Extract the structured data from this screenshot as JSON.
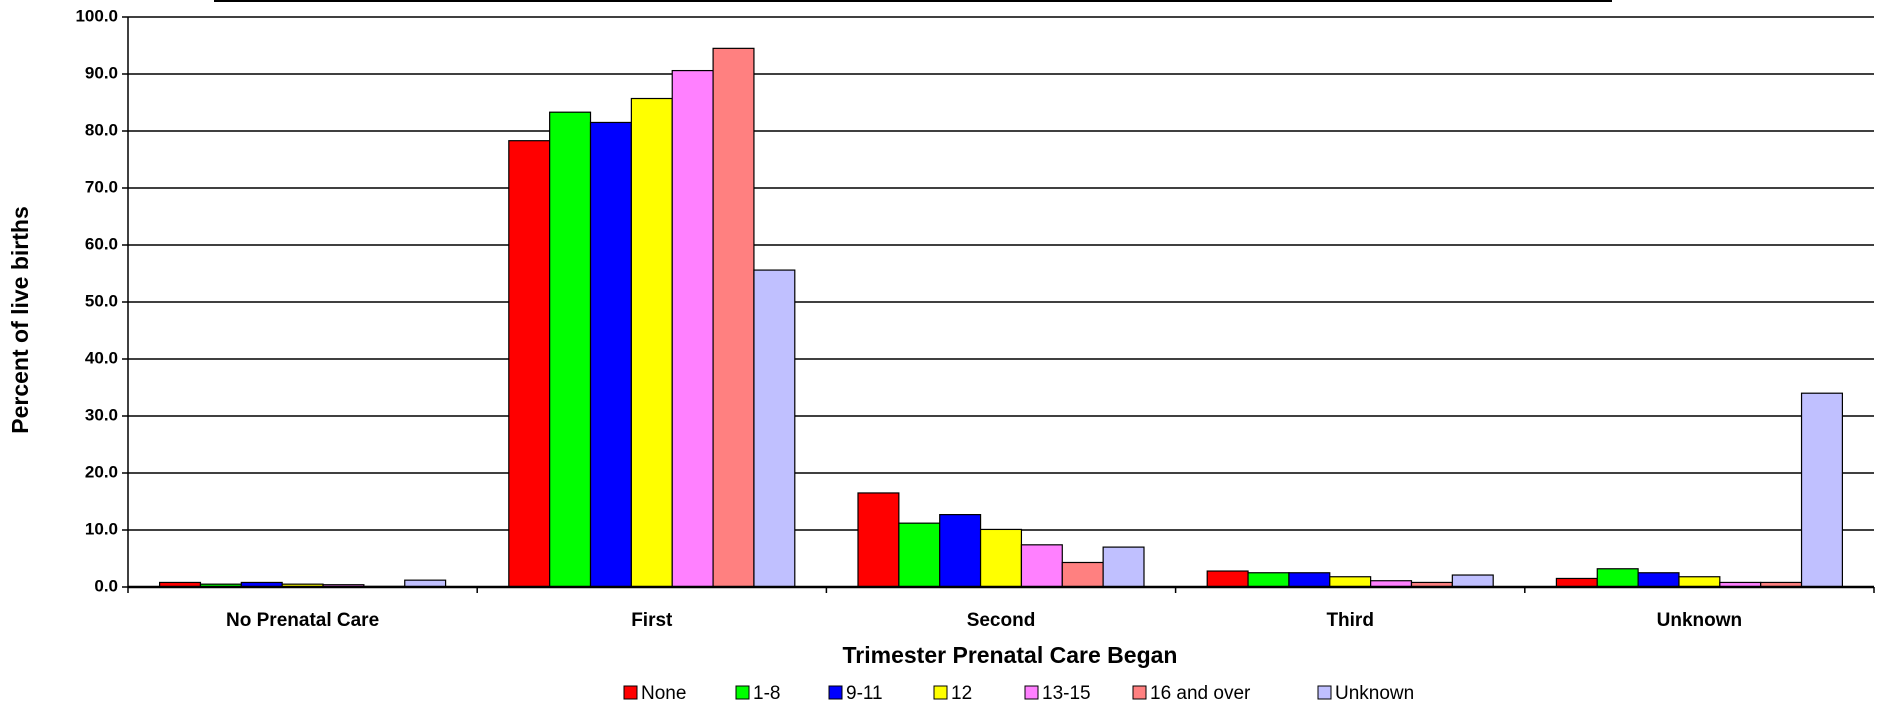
{
  "chart_data": {
    "type": "bar",
    "x_label": "Trimester Prenatal Care Began",
    "y_label": "Percent of live births",
    "categories": [
      "No Prenatal Care",
      "First",
      "Second",
      "Third",
      "Unknown"
    ],
    "series": [
      {
        "name": "None",
        "color": "#ff0000",
        "values": [
          0.8,
          78.3,
          16.5,
          2.8,
          1.5
        ]
      },
      {
        "name": "1-8",
        "color": "#00ff00",
        "values": [
          0.5,
          83.3,
          11.2,
          2.5,
          3.2
        ]
      },
      {
        "name": "9-11",
        "color": "#0000ff",
        "values": [
          0.8,
          81.5,
          12.7,
          2.5,
          2.5
        ]
      },
      {
        "name": "12",
        "color": "#ffff00",
        "values": [
          0.5,
          85.7,
          10.1,
          1.8,
          1.8
        ]
      },
      {
        "name": "13-15",
        "color": "#ff80ff",
        "values": [
          0.4,
          90.6,
          7.4,
          1.1,
          0.8
        ]
      },
      {
        "name": "16 and over",
        "color": "#ff8080",
        "values": [
          0.1,
          94.5,
          4.3,
          0.8,
          0.8
        ]
      },
      {
        "name": "Unknown",
        "color": "#c0c0ff",
        "values": [
          1.2,
          55.6,
          7.0,
          2.1,
          34.0
        ]
      }
    ],
    "ylim": [
      0,
      100
    ],
    "yticks": [
      {
        "value": 0,
        "label": "0.0"
      },
      {
        "value": 10,
        "label": "10.0"
      },
      {
        "value": 20,
        "label": "20.0"
      },
      {
        "value": 30,
        "label": "30.0"
      },
      {
        "value": 40,
        "label": "40.0"
      },
      {
        "value": 50,
        "label": "50.0"
      },
      {
        "value": 60,
        "label": "60.0"
      },
      {
        "value": 70,
        "label": "70.0"
      },
      {
        "value": 80,
        "label": "80.0"
      },
      {
        "value": 90,
        "label": "90.0"
      },
      {
        "value": 100,
        "label": "100.0"
      }
    ],
    "grid": true
  }
}
